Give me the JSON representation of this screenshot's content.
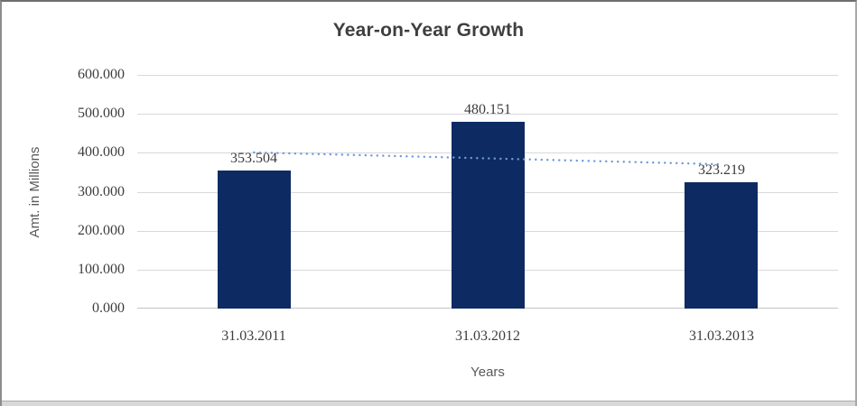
{
  "chart_data": {
    "type": "bar",
    "title": "Year-on-Year Growth",
    "xlabel": "Years",
    "ylabel": "Amt. in Millions",
    "categories": [
      "31.03.2011",
      "31.03.2012",
      "31.03.2013"
    ],
    "values": [
      353.504,
      480.151,
      323.219
    ],
    "data_labels": [
      "353.504",
      "480.151",
      "323.219"
    ],
    "ylim": [
      0,
      600
    ],
    "ytick_labels": [
      "0.000",
      "100.000",
      "200.000",
      "300.000",
      "400.000",
      "500.000",
      "600.000"
    ],
    "grid": true,
    "legend": "none",
    "bar_color": "#0e2a63",
    "trendline": {
      "type": "linear",
      "style": "dotted",
      "color": "#6f9ad7"
    }
  }
}
